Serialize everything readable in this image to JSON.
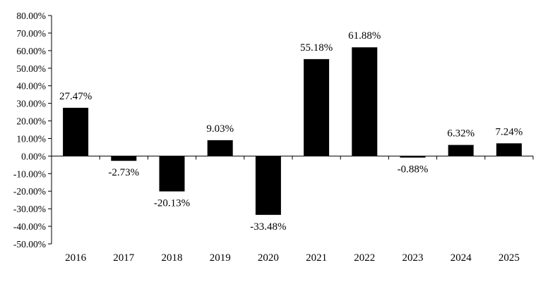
{
  "chart_data": {
    "type": "bar",
    "title": "",
    "xlabel": "",
    "ylabel": "",
    "categories": [
      "2016",
      "2017",
      "2018",
      "2019",
      "2020",
      "2021",
      "2022",
      "2023",
      "2024",
      "2025"
    ],
    "values": [
      27.47,
      -2.73,
      -20.13,
      9.03,
      -33.48,
      55.18,
      61.88,
      -0.88,
      6.32,
      7.24
    ],
    "data_labels": [
      "27.47%",
      "-2.73%",
      "-20.13%",
      "9.03%",
      "-33.48%",
      "55.18%",
      "61.88%",
      "-0.88%",
      "6.32%",
      "7.24%"
    ],
    "ylim": [
      -50,
      80
    ],
    "y_ticks": [
      80,
      70,
      60,
      50,
      40,
      30,
      20,
      10,
      0,
      -10,
      -20,
      -30,
      -40,
      -50
    ],
    "y_tick_labels": [
      "80.00%",
      "70.00%",
      "60.00%",
      "50.00%",
      "40.00%",
      "30.00%",
      "20.00%",
      "10.00%",
      "0.00%",
      "-10.00%",
      "-20.00%",
      "-30.00%",
      "-40.00%",
      "-50.00%"
    ],
    "grid": false,
    "legend": "none",
    "bar_color": "#000000",
    "axis_color": "#000000"
  }
}
